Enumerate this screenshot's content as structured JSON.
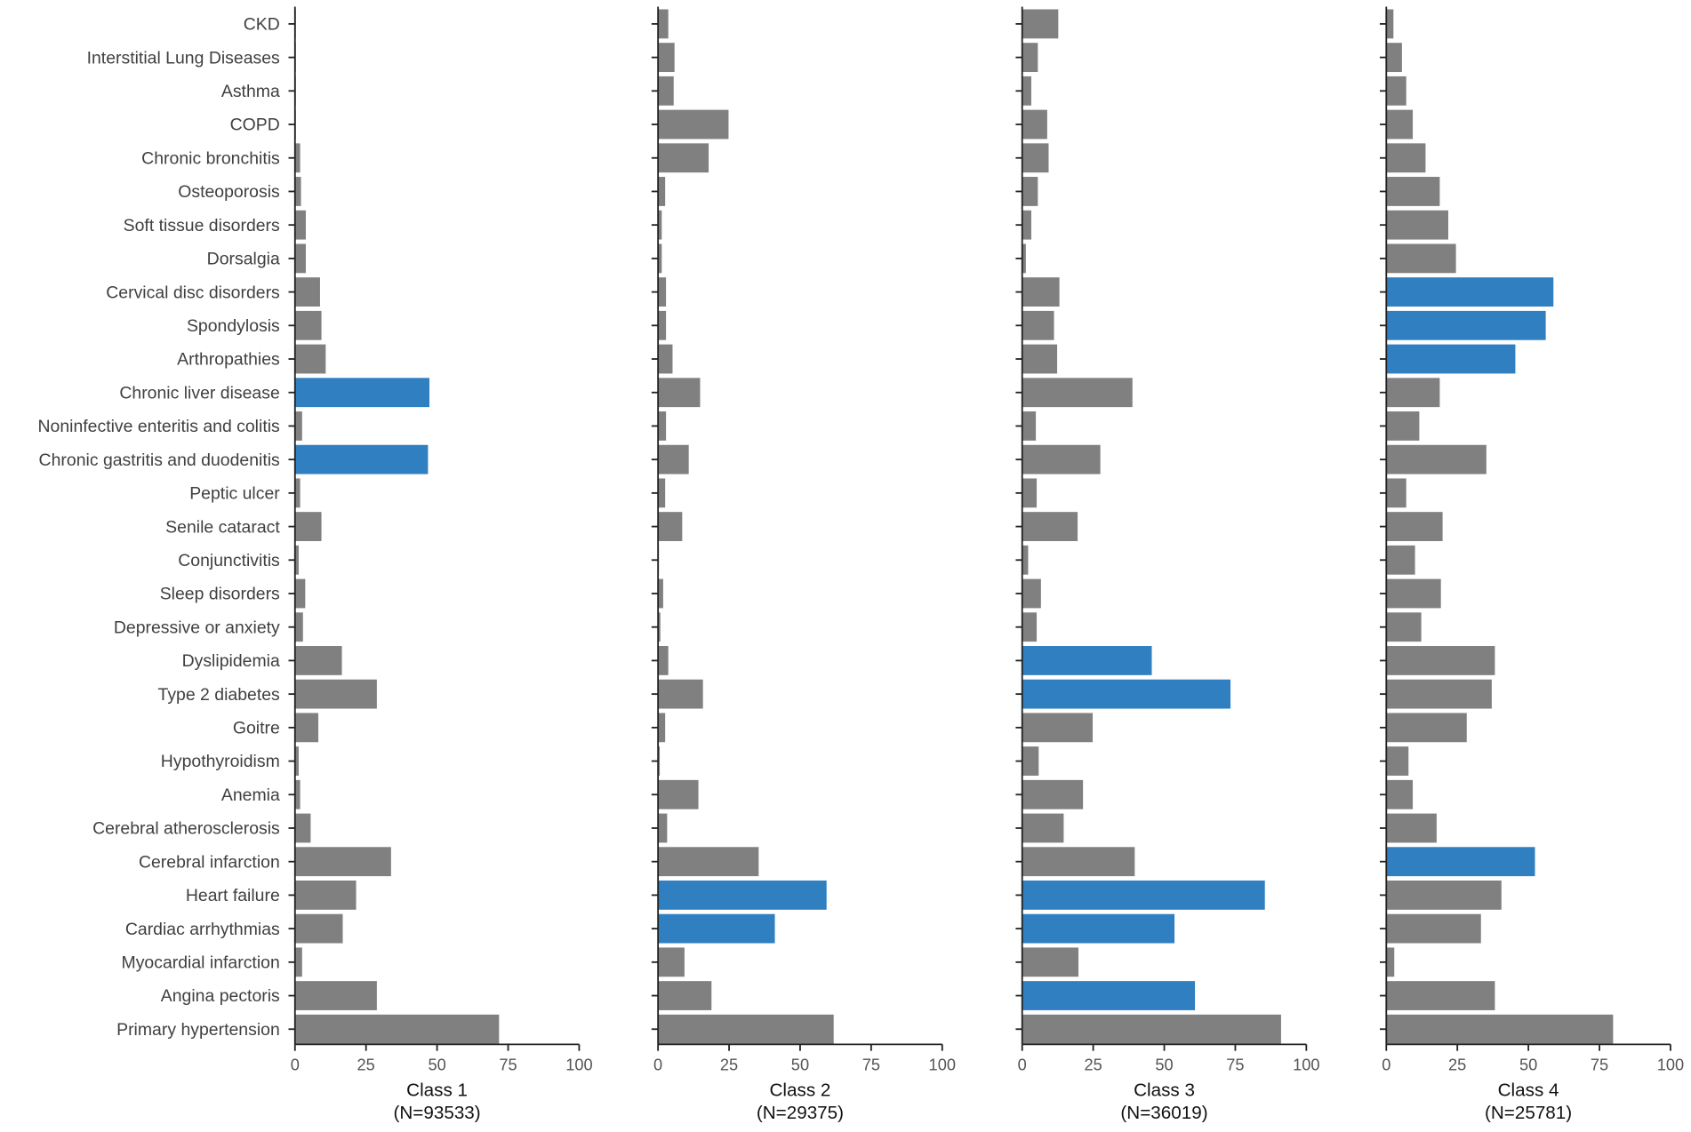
{
  "chart_data": {
    "type": "bar",
    "orientation": "horizontal",
    "xlim": [
      0,
      100
    ],
    "xticks": [
      "0",
      "25",
      "50",
      "75",
      "100"
    ],
    "grid": false,
    "colors": {
      "default": "#808080",
      "highlight": "#2f7fc1"
    },
    "categories": [
      "CKD",
      "Interstitial Lung Diseases",
      "Asthma",
      "COPD",
      "Chronic bronchitis",
      "Osteoporosis",
      "Soft tissue disorders",
      "Dorsalgia",
      "Cervical disc disorders",
      "Spondylosis",
      "Arthropathies",
      "Chronic liver disease",
      "Noninfective enteritis and colitis",
      "Chronic gastritis and duodenitis",
      "Peptic ulcer",
      "Senile cataract",
      "Conjunctivitis",
      "Sleep disorders",
      "Depressive or anxiety",
      "Dyslipidemia",
      "Type 2 diabetes",
      "Goitre",
      "Hypothyroidism",
      "Anemia",
      "Cerebral atherosclerosis",
      "Cerebral infarction",
      "Heart failure",
      "Cardiac arrhythmias",
      "Myocardial infarction",
      "Angina pectoris",
      "Primary hypertension"
    ],
    "series": [
      {
        "name": "Class 1",
        "n_label": "(N=93533)",
        "values": [
          0.5,
          0.5,
          0.5,
          0.5,
          2,
          2.3,
          4,
          4,
          9,
          9.5,
          11,
          47.5,
          2.7,
          47,
          2,
          9.5,
          1.5,
          3.8,
          3,
          16.7,
          29,
          8.4,
          1.5,
          2,
          5.7,
          34,
          21.7,
          17,
          2.7,
          29,
          72
        ],
        "highlighted": [
          "Chronic liver disease",
          "Chronic gastritis and duodenitis"
        ]
      },
      {
        "name": "Class 2",
        "n_label": "(N=29375)",
        "values": [
          3.8,
          6,
          5.7,
          25,
          18,
          2.7,
          1.5,
          1.5,
          3,
          3,
          5.3,
          15,
          3,
          11,
          2.7,
          8.7,
          0.5,
          2,
          1,
          3.8,
          16,
          2.7,
          0.8,
          14.4,
          3.4,
          35.6,
          59.5,
          41.3,
          9.5,
          19,
          62
        ],
        "highlighted": [
          "Heart failure",
          "Cardiac arrhythmias"
        ]
      },
      {
        "name": "Class 3",
        "n_label": "(N=36019)",
        "values": [
          12.9,
          5.7,
          3.4,
          9,
          9.5,
          5.7,
          3.4,
          1.5,
          13.3,
          11.4,
          12.5,
          39,
          5,
          27.7,
          5.3,
          19.7,
          2.3,
          6.8,
          5.3,
          45.8,
          73.5,
          25,
          6,
          21.6,
          14.8,
          39.8,
          85.6,
          53.8,
          20,
          61,
          91.3
        ],
        "highlighted": [
          "Dyslipidemia",
          "Type 2 diabetes",
          "Heart failure",
          "Cardiac arrhythmias",
          "Angina pectoris"
        ]
      },
      {
        "name": "Class 4",
        "n_label": "(N=25781)",
        "values": [
          2.7,
          5.7,
          7.2,
          9.5,
          14,
          19,
          22,
          24.7,
          59,
          56.3,
          45.6,
          19,
          11.8,
          35.4,
          7.2,
          20,
          10.3,
          19.4,
          12.5,
          38.4,
          37.3,
          28.5,
          8,
          9.5,
          17.9,
          52.5,
          40.7,
          33.5,
          3,
          38.4,
          80
        ],
        "highlighted": [
          "Cervical disc disorders",
          "Spondylosis",
          "Arthropathies",
          "Cerebral infarction"
        ]
      }
    ]
  }
}
